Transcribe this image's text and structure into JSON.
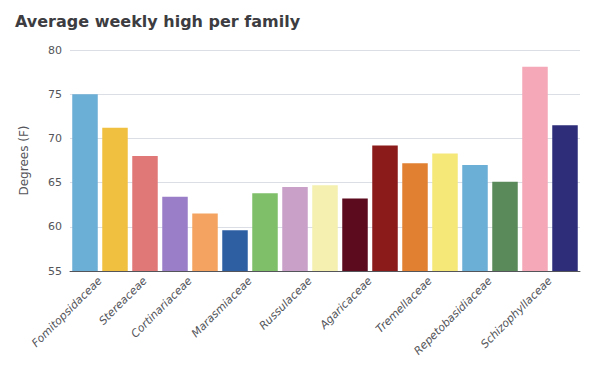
{
  "chart_data": {
    "type": "bar",
    "title": "Average weekly high per family",
    "ylabel": "Degrees (F)",
    "categories": [
      "Fomitopsidaceae",
      null,
      "Stereaceae",
      "Cortinariaceae",
      null,
      "Marasmiaceae",
      null,
      "Russulaceae",
      null,
      "Agaricaceae",
      null,
      "Tremellaceae",
      null,
      "Repetobasidiaceae",
      null,
      "Schizophyllaceae",
      null
    ],
    "values": [
      75.0,
      71.2,
      68.0,
      63.4,
      61.5,
      59.6,
      63.8,
      64.5,
      64.7,
      63.2,
      69.2,
      67.2,
      68.3,
      67.0,
      65.1,
      78.1,
      71.5
    ],
    "colors": [
      "#6baed6",
      "#f0c040",
      "#e07878",
      "#9b7ec8",
      "#f4a460",
      "#2e5fa3",
      "#7fbf6a",
      "#c8a0c8",
      "#f5f0b0",
      "#5c0a1e",
      "#8b1a1a",
      "#e08030",
      "#f5e878",
      "#6baed6",
      "#5a8a5a",
      "#f4a8b8",
      "#2d2d7a"
    ],
    "ylim": [
      55,
      80
    ],
    "yticks": [
      55,
      60,
      65,
      70,
      75,
      80
    ],
    "grid": true
  }
}
